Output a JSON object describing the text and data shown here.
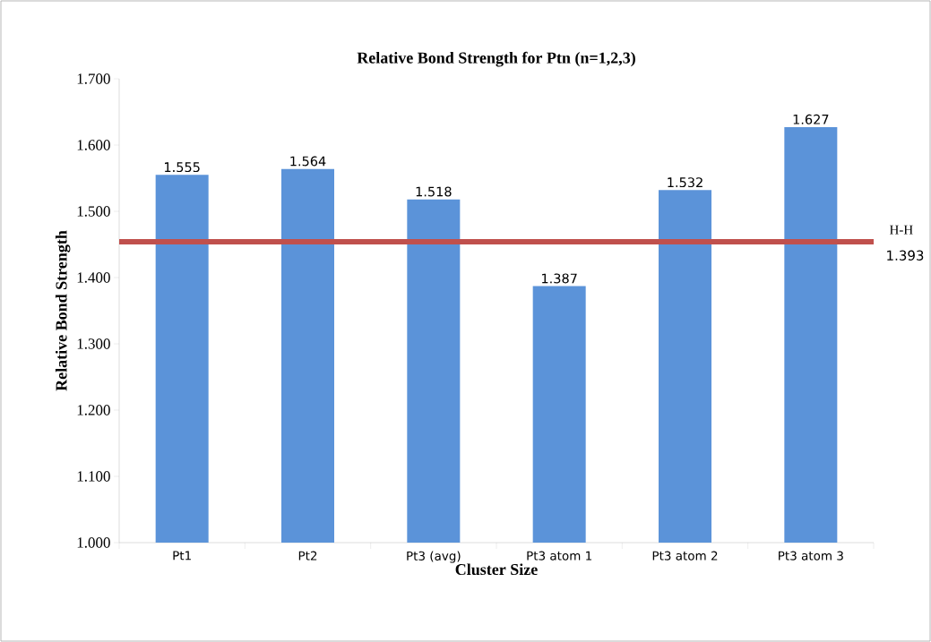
{
  "chart_data": {
    "type": "bar",
    "title": "Relative Bond Strength for Ptn (n=1,2,3)",
    "xlabel": "Cluster Size",
    "ylabel": "Relative Bond Strength",
    "categories": [
      "Pt1",
      "Pt2",
      "Pt3 (avg)",
      "Pt3 atom 1",
      "Pt3 atom 2",
      "Pt3 atom 3"
    ],
    "values": [
      1.555,
      1.564,
      1.518,
      1.387,
      1.532,
      1.627
    ],
    "color": "#5b93d9",
    "data_labels": true,
    "ylim": [
      1.0,
      1.7
    ],
    "yticks": [
      {
        "value": 1.0,
        "label": "1.000"
      },
      {
        "value": 1.1,
        "label": "1.100"
      },
      {
        "value": 1.2,
        "label": "1.200"
      },
      {
        "value": 1.3,
        "label": "1.300"
      },
      {
        "value": 1.4,
        "label": "1.400"
      },
      {
        "value": 1.5,
        "label": "1.500"
      },
      {
        "value": 1.6,
        "label": "1.600"
      },
      {
        "value": 1.7,
        "label": "1.700"
      }
    ],
    "ref_lines": [
      {
        "axis": "y",
        "value": 1.454,
        "label": "H-H",
        "color": "#c0504d"
      }
    ],
    "annotations": [
      "1.393"
    ]
  }
}
